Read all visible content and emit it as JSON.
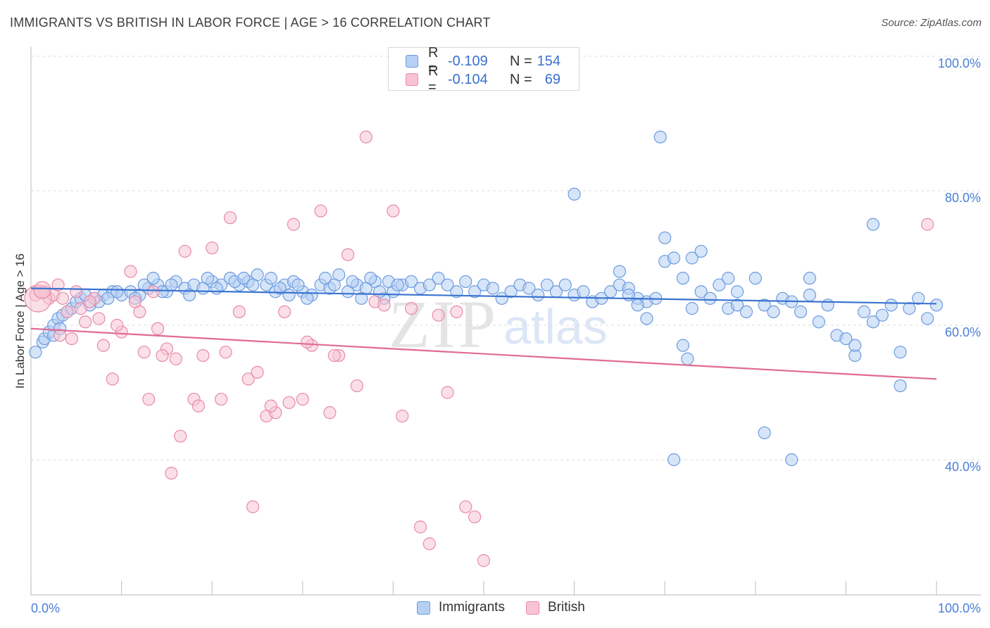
{
  "title": "IMMIGRANTS VS BRITISH IN LABOR FORCE | AGE > 16 CORRELATION CHART",
  "source": "Source: ZipAtlas.com",
  "watermark": {
    "zip": "ZIP",
    "atlas": "atlas"
  },
  "legend_top": [
    {
      "r_label": "R =",
      "r_value": "-0.109",
      "n_label": "N =",
      "n_value": "154",
      "fill": "#b6cff3",
      "stroke": "#6c9be0"
    },
    {
      "r_label": "R =",
      "r_value": "-0.104",
      "n_label": "N =",
      "n_value": "69",
      "fill": "#f8c4d4",
      "stroke": "#e88aa8"
    }
  ],
  "legend_bottom": [
    {
      "label": "Immigrants",
      "fill": "#b6cff3",
      "stroke": "#6c9be0"
    },
    {
      "label": "British",
      "fill": "#f8c4d4",
      "stroke": "#e88aa8"
    }
  ],
  "chart_data": {
    "type": "scatter",
    "title": "IMMIGRANTS VS BRITISH IN LABOR FORCE | AGE > 16 CORRELATION CHART",
    "xlabel": "",
    "ylabel": "In Labor Force | Age > 16",
    "xlim": [
      0,
      100
    ],
    "ylim": [
      20,
      103
    ],
    "x_tick_labels": [
      "0.0%",
      "100.0%"
    ],
    "y_ticks": [
      40,
      60,
      80,
      100
    ],
    "y_tick_labels": [
      "40.0%",
      "60.0%",
      "80.0%",
      "100.0%"
    ],
    "grid": true,
    "legend_position": "top-center",
    "series": [
      {
        "name": "Immigrants",
        "color": "#6c9be0",
        "fill": "#b6cff3",
        "trend": {
          "x": [
            0,
            100
          ],
          "y": [
            65.5,
            63.2
          ]
        },
        "points": [
          [
            0.5,
            56
          ],
          [
            1.3,
            57.5
          ],
          [
            1.5,
            58
          ],
          [
            2,
            59
          ],
          [
            2.5,
            60
          ],
          [
            3,
            61
          ],
          [
            3.5,
            61.5
          ],
          [
            4,
            62
          ],
          [
            4.5,
            62.5
          ],
          [
            5,
            63.5
          ],
          [
            5.5,
            64
          ],
          [
            6,
            64.5
          ],
          [
            7,
            64
          ],
          [
            8,
            64.5
          ],
          [
            9,
            65
          ],
          [
            10,
            64.5
          ],
          [
            11,
            65
          ],
          [
            12,
            64.5
          ],
          [
            13,
            65.5
          ],
          [
            14,
            66
          ],
          [
            15,
            65
          ],
          [
            16,
            66.5
          ],
          [
            17,
            65.5
          ],
          [
            18,
            66
          ],
          [
            19,
            65.5
          ],
          [
            20,
            66.5
          ],
          [
            21,
            66
          ],
          [
            22,
            67
          ],
          [
            23,
            66
          ],
          [
            24,
            66.5
          ],
          [
            25,
            67.5
          ],
          [
            26,
            66
          ],
          [
            27,
            65
          ],
          [
            28,
            66
          ],
          [
            29,
            66.5
          ],
          [
            30,
            65
          ],
          [
            31,
            64.5
          ],
          [
            32,
            66
          ],
          [
            33,
            65.5
          ],
          [
            34,
            67.5
          ],
          [
            35,
            65
          ],
          [
            36,
            66
          ],
          [
            37,
            65.5
          ],
          [
            38,
            66.5
          ],
          [
            39,
            64
          ],
          [
            40,
            65
          ],
          [
            41,
            66
          ],
          [
            42,
            66.5
          ],
          [
            43,
            65.5
          ],
          [
            44,
            66
          ],
          [
            45,
            67
          ],
          [
            46,
            66
          ],
          [
            47,
            65
          ],
          [
            48,
            66.5
          ],
          [
            49,
            65
          ],
          [
            50,
            66
          ],
          [
            51,
            65.5
          ],
          [
            52,
            64
          ],
          [
            53,
            65
          ],
          [
            54,
            66
          ],
          [
            55,
            65.5
          ],
          [
            56,
            64.5
          ],
          [
            57,
            66
          ],
          [
            58,
            65
          ],
          [
            59,
            66
          ],
          [
            60,
            64.5
          ],
          [
            61,
            65
          ],
          [
            62,
            63.5
          ],
          [
            63,
            64
          ],
          [
            64,
            65
          ],
          [
            65,
            66
          ],
          [
            66,
            65.5
          ],
          [
            67,
            64
          ],
          [
            68,
            63.5
          ],
          [
            69,
            64
          ],
          [
            70,
            69.5
          ],
          [
            71,
            70
          ],
          [
            72,
            67
          ],
          [
            73,
            62.5
          ],
          [
            74,
            65
          ],
          [
            75,
            64
          ],
          [
            76,
            66
          ],
          [
            77,
            62.5
          ],
          [
            78,
            63
          ],
          [
            79,
            62
          ],
          [
            80,
            67
          ],
          [
            81,
            63
          ],
          [
            82,
            62
          ],
          [
            83,
            64
          ],
          [
            84,
            63.5
          ],
          [
            85,
            62
          ],
          [
            86,
            64.5
          ],
          [
            87,
            60.5
          ],
          [
            88,
            63
          ],
          [
            89,
            58.5
          ],
          [
            90,
            58
          ],
          [
            91,
            55.5
          ],
          [
            92,
            62
          ],
          [
            93,
            60.5
          ],
          [
            94,
            61.5
          ],
          [
            95,
            63
          ],
          [
            96,
            56
          ],
          [
            97,
            62.5
          ],
          [
            98,
            64
          ],
          [
            99,
            61
          ],
          [
            100,
            63
          ],
          [
            69.5,
            88
          ],
          [
            60,
            79.5
          ],
          [
            70,
            73
          ],
          [
            65,
            68
          ],
          [
            73,
            70
          ],
          [
            74,
            71
          ],
          [
            77,
            67
          ],
          [
            72.5,
            55
          ],
          [
            72,
            57
          ],
          [
            81,
            44
          ],
          [
            84,
            40
          ],
          [
            71,
            40
          ],
          [
            91,
            57
          ],
          [
            96,
            51
          ],
          [
            93,
            75
          ],
          [
            86,
            67
          ],
          [
            78,
            65
          ],
          [
            68,
            61
          ],
          [
            66,
            64.5
          ],
          [
            67,
            63
          ],
          [
            2.5,
            58.5
          ],
          [
            3.2,
            59.5
          ],
          [
            6.5,
            63
          ],
          [
            7.5,
            63.5
          ],
          [
            8.5,
            64
          ],
          [
            9.5,
            65
          ],
          [
            11.5,
            64
          ],
          [
            12.5,
            66
          ],
          [
            13.5,
            67
          ],
          [
            14.5,
            65
          ],
          [
            15.5,
            66
          ],
          [
            17.5,
            64.5
          ],
          [
            19.5,
            67
          ],
          [
            20.5,
            65.5
          ],
          [
            22.5,
            66.5
          ],
          [
            23.5,
            67
          ],
          [
            24.5,
            66
          ],
          [
            26.5,
            67
          ],
          [
            27.5,
            65.5
          ],
          [
            28.5,
            64.5
          ],
          [
            29.5,
            66
          ],
          [
            30.5,
            64
          ],
          [
            32.5,
            67
          ],
          [
            33.5,
            66
          ],
          [
            35.5,
            66.5
          ],
          [
            36.5,
            64
          ],
          [
            37.5,
            67
          ],
          [
            38.5,
            65
          ],
          [
            39.5,
            66.5
          ],
          [
            40.5,
            66
          ]
        ]
      },
      {
        "name": "British",
        "color": "#e88aa8",
        "fill": "#f8c4d4",
        "trend": {
          "x": [
            0,
            100
          ],
          "y": [
            59.5,
            52
          ]
        },
        "points": [
          [
            0.5,
            64.5
          ],
          [
            1,
            65
          ],
          [
            1.5,
            65
          ],
          [
            2,
            64
          ],
          [
            2.5,
            64.5
          ],
          [
            3,
            66
          ],
          [
            3.5,
            64
          ],
          [
            4,
            62
          ],
          [
            4.5,
            58
          ],
          [
            5,
            65
          ],
          [
            6,
            60.5
          ],
          [
            7,
            64
          ],
          [
            8,
            57
          ],
          [
            9,
            52
          ],
          [
            10,
            59
          ],
          [
            11,
            68
          ],
          [
            12,
            62
          ],
          [
            13,
            49
          ],
          [
            14,
            59.5
          ],
          [
            15,
            56.5
          ],
          [
            16,
            55
          ],
          [
            17,
            71
          ],
          [
            18,
            49
          ],
          [
            19,
            55.5
          ],
          [
            20,
            71.5
          ],
          [
            21,
            49
          ],
          [
            22,
            76
          ],
          [
            23,
            62
          ],
          [
            24,
            52
          ],
          [
            25,
            53
          ],
          [
            26,
            46.5
          ],
          [
            27,
            47
          ],
          [
            28,
            62
          ],
          [
            29,
            75
          ],
          [
            30,
            49
          ],
          [
            31,
            57
          ],
          [
            32,
            77
          ],
          [
            33,
            47
          ],
          [
            34,
            55.5
          ],
          [
            35,
            70.5
          ],
          [
            36,
            51
          ],
          [
            37,
            88
          ],
          [
            38,
            63.5
          ],
          [
            39,
            63
          ],
          [
            40,
            77
          ],
          [
            41,
            46.5
          ],
          [
            42,
            62.5
          ],
          [
            43,
            30
          ],
          [
            44,
            27.5
          ],
          [
            45,
            61.5
          ],
          [
            46,
            50
          ],
          [
            47,
            62
          ],
          [
            48,
            33
          ],
          [
            49,
            31.5
          ],
          [
            50,
            25
          ],
          [
            5.5,
            62.5
          ],
          [
            6.5,
            63.5
          ],
          [
            9.5,
            60
          ],
          [
            12.5,
            56
          ],
          [
            14.5,
            55.5
          ],
          [
            16.5,
            43.5
          ],
          [
            15.5,
            38
          ],
          [
            24.5,
            33
          ],
          [
            28.5,
            48.5
          ],
          [
            99,
            75
          ],
          [
            18.5,
            48
          ],
          [
            21.5,
            56
          ],
          [
            30.5,
            57.5
          ],
          [
            33.5,
            55.5
          ],
          [
            11.5,
            63.5
          ],
          [
            13.5,
            65
          ],
          [
            7.5,
            61
          ],
          [
            3.2,
            58.5
          ],
          [
            26.5,
            48
          ]
        ]
      }
    ]
  }
}
